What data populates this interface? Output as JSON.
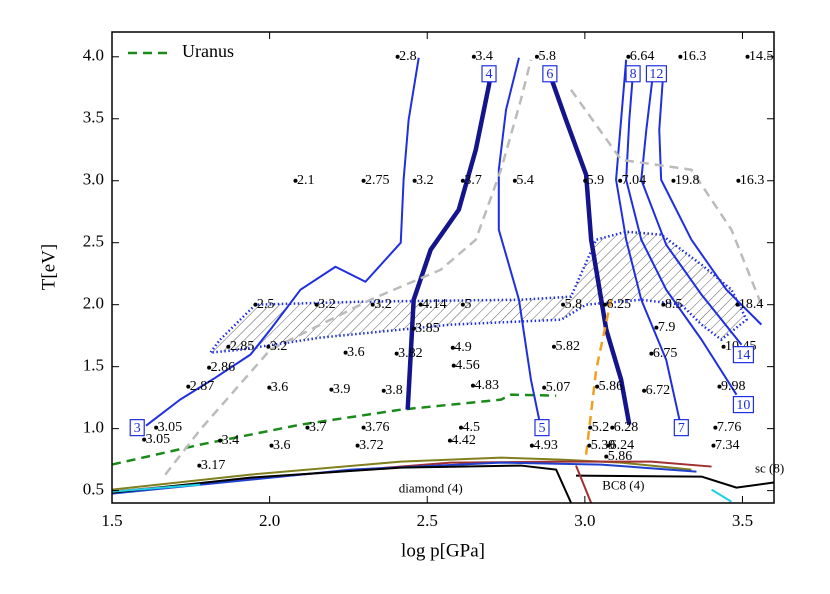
{
  "chart_data": {
    "type": "line",
    "xlabel": "log p[GPa]",
    "ylabel": "T[eV]",
    "xlim": [
      1.5,
      3.6
    ],
    "ylim": [
      0.4,
      4.2
    ],
    "xticks": [
      1.5,
      {
        "value": 2,
        "label": "2.0"
      },
      2.5,
      {
        "value": 3,
        "label": "3.0"
      },
      3.5
    ],
    "yticks": [
      0.5,
      {
        "value": 1,
        "label": "1.0"
      },
      1.5,
      {
        "value": 2,
        "label": "2.0"
      },
      2.5,
      {
        "value": 3,
        "label": "3.0"
      },
      3.5,
      {
        "value": 4,
        "label": "4.0"
      }
    ],
    "legend": "upper left",
    "series": [
      {
        "name": "Uranus",
        "color": "#1a8a1a",
        "dashed": true,
        "thick": false,
        "x": [
          1.5,
          1.78,
          2.098,
          2.416,
          2.734,
          2.766,
          2.909
        ],
        "values": [
          0.71,
          0.871,
          1.032,
          1.153,
          1.234,
          1.274,
          1.266
        ]
      },
      {
        "color": "#1f2fe0",
        "dashed": false,
        "thick": false,
        "x": [
          1.608,
          1.716,
          1.828,
          1.939,
          2.002,
          2.098,
          2.209,
          2.304,
          2.416,
          2.425,
          2.441,
          2.473
        ],
        "values": [
          1.024,
          1.234,
          1.411,
          1.597,
          1.798,
          2.121,
          2.306,
          2.185,
          2.5,
          3.008,
          3.492,
          3.992
        ]
      },
      {
        "color": "#14148c",
        "dashed": false,
        "thick": true,
        "x": [
          2.438,
          2.457,
          2.511,
          2.6,
          2.654,
          2.696,
          2.702
        ],
        "values": [
          1.153,
          2.04,
          2.444,
          2.766,
          3.25,
          3.774,
          3.879
        ]
      },
      {
        "color": "#1f2fe0",
        "dashed": false,
        "thick": false,
        "x": [
          2.855,
          2.829,
          2.791,
          2.727,
          2.727,
          2.75,
          2.791
        ],
        "values": [
          1.073,
          1.395,
          2.04,
          2.605,
          3.089,
          3.573,
          3.992
        ]
      },
      {
        "color": "#14148c",
        "dashed": false,
        "thick": true,
        "x": [
          2.886,
          2.94,
          3.004,
          3.02,
          3.068,
          3.115,
          3.141
        ],
        "values": [
          3.879,
          3.492,
          3.048,
          2.524,
          1.798,
          1.395,
          1.032
        ]
      },
      {
        "color": "#1f2fe0",
        "dashed": false,
        "thick": false,
        "x": [
          3.131,
          3.115,
          3.099,
          3.131,
          3.179,
          3.258,
          3.3
        ],
        "values": [
          3.976,
          3.492,
          3.008,
          2.524,
          2.04,
          1.556,
          1.073
        ]
      },
      {
        "color": "#1f2fe0",
        "dashed": false,
        "thick": false,
        "x": [
          3.153,
          3.141,
          3.131,
          3.179,
          3.258,
          3.37,
          3.481
        ],
        "values": [
          3.879,
          3.492,
          3.008,
          2.524,
          2.121,
          1.718,
          1.274
        ]
      },
      {
        "color": "#1f2fe0",
        "dashed": false,
        "thick": false,
        "x": [
          3.217,
          3.195,
          3.179,
          3.258,
          3.37,
          3.497
        ],
        "values": [
          3.879,
          3.411,
          3.008,
          2.484,
          2.081,
          1.677
        ]
      },
      {
        "color": "#1f2fe0",
        "dashed": false,
        "thick": false,
        "x": [
          3.249,
          3.236,
          3.242,
          3.338,
          3.449,
          3.56
        ],
        "values": [
          3.879,
          3.411,
          3.008,
          2.524,
          2.121,
          1.839
        ]
      },
      {
        "color": "#bbbbbb",
        "dashed": true,
        "thick": false,
        "x": [
          1.669,
          1.78,
          2.002,
          2.32,
          2.543,
          2.654,
          2.734,
          2.797,
          2.829
        ],
        "values": [
          0.629,
          0.992,
          1.637,
          2.04,
          2.282,
          2.524,
          3.089,
          3.653,
          3.976
        ]
      },
      {
        "color": "#bbbbbb",
        "dashed": true,
        "thick": false,
        "x": [
          2.956,
          3.115,
          3.338,
          3.465,
          3.56
        ],
        "values": [
          3.734,
          3.169,
          3.089,
          2.605,
          2.0
        ]
      },
      {
        "color": "#f0a020",
        "dashed": true,
        "thick": false,
        "x": [
          3.004,
          3.036,
          3.083
        ],
        "values": [
          0.79,
          1.476,
          2.04
        ]
      },
      {
        "color": "#808020",
        "dashed": false,
        "thick": false,
        "x": [
          1.5,
          1.939,
          2.416,
          2.734,
          2.925,
          3.115,
          3.338
        ],
        "values": [
          0.508,
          0.629,
          0.734,
          0.766,
          0.75,
          0.726,
          0.669
        ]
      },
      {
        "color": "#a03030",
        "dashed": false,
        "thick": false,
        "x": [
          1.5,
          2.098,
          2.575,
          2.925,
          3.211,
          3.402
        ],
        "values": [
          0.492,
          0.629,
          0.726,
          0.734,
          0.734,
          0.694
        ]
      },
      {
        "color": "#2040d0",
        "dashed": false,
        "thick": false,
        "x": [
          1.5,
          2.257,
          2.734,
          3.052,
          3.354
        ],
        "values": [
          0.476,
          0.669,
          0.726,
          0.71,
          0.653
        ]
      },
      {
        "color": "#000000",
        "dashed": false,
        "thick": false,
        "x": [
          1.5,
          1.939,
          2.416,
          2.797,
          2.909,
          2.956
        ],
        "values": [
          0.484,
          0.605,
          0.685,
          0.702,
          0.669,
          0.403
        ]
      },
      {
        "color": "#000000",
        "dashed": false,
        "thick": false,
        "x": [
          2.972,
          3.37,
          3.481,
          3.599
        ],
        "values": [
          0.621,
          0.613,
          0.524,
          0.565
        ]
      },
      {
        "color": "#a03030",
        "dashed": false,
        "thick": false,
        "x": [
          2.972,
          3.02
        ],
        "values": [
          0.702,
          0.4
        ]
      },
      {
        "color": "#20d0e0",
        "dashed": false,
        "thick": false,
        "x": [
          1.5,
          1.78
        ],
        "values": [
          0.492,
          0.548
        ]
      },
      {
        "color": "#20d0e0",
        "dashed": false,
        "thick": false,
        "x": [
          3.402,
          3.465
        ],
        "values": [
          0.508,
          0.41
        ]
      }
    ],
    "hatched_region": {
      "color": "#1f2fe0",
      "x": [
        1.843,
        1.955,
        2.289,
        2.797,
        2.956,
        3.036,
        3.131,
        3.242,
        3.37,
        3.465,
        3.513,
        3.433,
        3.37,
        3.306,
        3.179,
        3.004,
        2.925,
        2.575,
        2.161,
        1.907,
        1.812
      ],
      "y": [
        1.718,
        2.0,
        2.024,
        2.04,
        2.065,
        2.524,
        2.589,
        2.565,
        2.323,
        2.121,
        1.879,
        1.718,
        1.839,
        2.0,
        2.04,
        2.0,
        1.879,
        1.839,
        1.734,
        1.637,
        1.613
      ]
    },
    "points": [
      {
        "x": 2.406,
        "y": 4.0,
        "value": 2.8
      },
      {
        "x": 2.648,
        "y": 4.0,
        "value": 3.4
      },
      {
        "x": 2.848,
        "y": 4.0,
        "value": 5.8
      },
      {
        "x": 3.138,
        "y": 4.0,
        "value": 6.64
      },
      {
        "x": 3.303,
        "y": 4.0,
        "value": 16.3
      },
      {
        "x": 3.516,
        "y": 4.0,
        "value": 14.5
      },
      {
        "x": 2.082,
        "y": 3.0,
        "value": 2.1
      },
      {
        "x": 2.298,
        "y": 3.0,
        "value": 2.75
      },
      {
        "x": 2.46,
        "y": 3.0,
        "value": 3.2
      },
      {
        "x": 2.613,
        "y": 3.0,
        "value": 3.7
      },
      {
        "x": 2.778,
        "y": 3.0,
        "value": 5.4
      },
      {
        "x": 3.001,
        "y": 3.0,
        "value": 5.9
      },
      {
        "x": 3.112,
        "y": 3.0,
        "value": 7.04
      },
      {
        "x": 3.281,
        "y": 3.0,
        "value": 19.8
      },
      {
        "x": 3.487,
        "y": 3.0,
        "value": 16.3
      },
      {
        "x": 1.955,
        "y": 2.0,
        "value": 2.5
      },
      {
        "x": 2.149,
        "y": 2.0,
        "value": 3.2
      },
      {
        "x": 2.327,
        "y": 2.0,
        "value": 3.2
      },
      {
        "x": 2.479,
        "y": 2.0,
        "value": 4.14
      },
      {
        "x": 2.613,
        "y": 2.0,
        "value": 5
      },
      {
        "x": 2.931,
        "y": 2.0,
        "value": 5.8
      },
      {
        "x": 3.064,
        "y": 2.0,
        "value": 6.25
      },
      {
        "x": 3.249,
        "y": 2.0,
        "value": 8.5
      },
      {
        "x": 3.484,
        "y": 2.0,
        "value": 18.4
      },
      {
        "x": 2.457,
        "y": 1.806,
        "value": 3.85
      },
      {
        "x": 3.227,
        "y": 1.815,
        "value": 7.9
      },
      {
        "x": 1.869,
        "y": 1.661,
        "value": 2.85
      },
      {
        "x": 1.996,
        "y": 1.661,
        "value": 3.2
      },
      {
        "x": 2.241,
        "y": 1.613,
        "value": 3.6
      },
      {
        "x": 2.403,
        "y": 1.605,
        "value": 3.82
      },
      {
        "x": 2.581,
        "y": 1.653,
        "value": 4.9
      },
      {
        "x": 2.902,
        "y": 1.661,
        "value": 5.82
      },
      {
        "x": 3.211,
        "y": 1.605,
        "value": 6.75
      },
      {
        "x": 3.44,
        "y": 1.661,
        "value": 10.45
      },
      {
        "x": 1.808,
        "y": 1.492,
        "value": 2.86
      },
      {
        "x": 2.584,
        "y": 1.508,
        "value": 4.56
      },
      {
        "x": 1.742,
        "y": 1.339,
        "value": 2.87
      },
      {
        "x": 1.999,
        "y": 1.331,
        "value": 3.6
      },
      {
        "x": 2.196,
        "y": 1.315,
        "value": 3.9
      },
      {
        "x": 2.362,
        "y": 1.306,
        "value": 3.8
      },
      {
        "x": 2.645,
        "y": 1.347,
        "value": 4.83
      },
      {
        "x": 2.871,
        "y": 1.331,
        "value": 5.07
      },
      {
        "x": 3.039,
        "y": 1.339,
        "value": 5.86
      },
      {
        "x": 3.188,
        "y": 1.306,
        "value": 6.72
      },
      {
        "x": 3.427,
        "y": 1.339,
        "value": 9.98
      },
      {
        "x": 1.64,
        "y": 1.008,
        "value": 3.05
      },
      {
        "x": 1.602,
        "y": 0.911,
        "value": 3.05
      },
      {
        "x": 1.843,
        "y": 0.903,
        "value": 3.4
      },
      {
        "x": 2.12,
        "y": 1.008,
        "value": 3.7
      },
      {
        "x": 2.006,
        "y": 0.863,
        "value": 3.6
      },
      {
        "x": 2.298,
        "y": 1.008,
        "value": 3.76
      },
      {
        "x": 2.279,
        "y": 0.863,
        "value": 3.72
      },
      {
        "x": 2.607,
        "y": 1.008,
        "value": 4.5
      },
      {
        "x": 2.572,
        "y": 0.903,
        "value": 4.42
      },
      {
        "x": 2.832,
        "y": 0.863,
        "value": 4.93
      },
      {
        "x": 3.017,
        "y": 1.008,
        "value": 5.2
      },
      {
        "x": 3.014,
        "y": 0.863,
        "value": 5.39
      },
      {
        "x": 3.087,
        "y": 1.008,
        "value": 6.28
      },
      {
        "x": 3.074,
        "y": 0.863,
        "value": 6.24
      },
      {
        "x": 3.068,
        "y": 0.774,
        "value": 5.86
      },
      {
        "x": 3.414,
        "y": 1.008,
        "value": 7.76
      },
      {
        "x": 3.408,
        "y": 0.863,
        "value": 7.34
      },
      {
        "x": 1.777,
        "y": 0.702,
        "value": 3.17
      }
    ],
    "boxes": [
      {
        "x": 1.58,
        "y": 1.008,
        "value": 3
      },
      {
        "x": 2.696,
        "y": 3.863,
        "value": 4
      },
      {
        "x": 2.864,
        "y": 1.008,
        "value": 5
      },
      {
        "x": 2.889,
        "y": 3.863,
        "value": 6
      },
      {
        "x": 3.306,
        "y": 1.008,
        "value": 7
      },
      {
        "x": 3.153,
        "y": 3.863,
        "value": 8
      },
      {
        "x": 3.227,
        "y": 3.863,
        "value": 12
      },
      {
        "x": 3.503,
        "y": 1.597,
        "value": 14
      },
      {
        "x": 3.503,
        "y": 1.194,
        "value": 10
      }
    ],
    "annotations": [
      {
        "text": "diamond (4)",
        "x": 2.511,
        "y": 0.508
      },
      {
        "text": "BC8 (4)",
        "x": 3.122,
        "y": 0.532
      },
      {
        "text": "sc (8)",
        "x": 3.586,
        "y": 0.669
      }
    ]
  }
}
